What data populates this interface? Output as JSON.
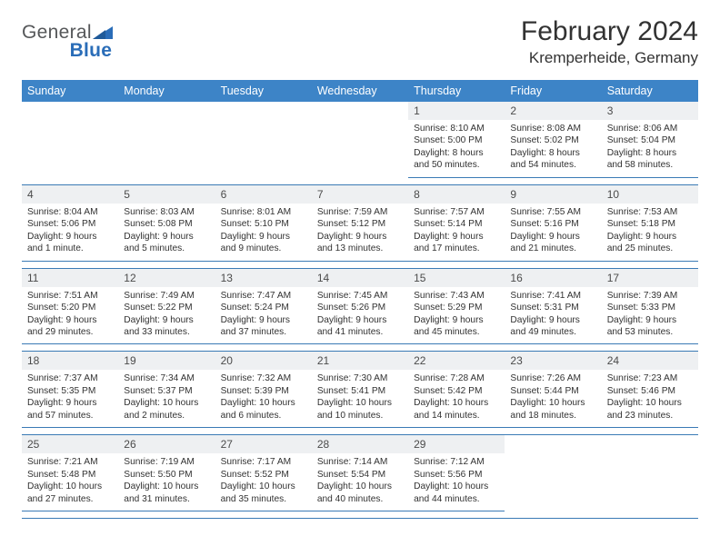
{
  "brand": {
    "name1": "General",
    "name2": "Blue"
  },
  "title": "February 2024",
  "location": "Kremperheide, Germany",
  "dayHeaders": [
    "Sunday",
    "Monday",
    "Tuesday",
    "Wednesday",
    "Thursday",
    "Friday",
    "Saturday"
  ],
  "colors": {
    "header_bg": "#3d84c7",
    "header_fg": "#ffffff",
    "daynum_bg": "#eef0f2",
    "text": "#323232",
    "row_border": "#3a7ab5",
    "logo_gray": "#555759",
    "logo_blue": "#2a6db8"
  },
  "weeks": [
    [
      {
        "n": "",
        "sr": "",
        "ss": "",
        "dl": ""
      },
      {
        "n": "",
        "sr": "",
        "ss": "",
        "dl": ""
      },
      {
        "n": "",
        "sr": "",
        "ss": "",
        "dl": ""
      },
      {
        "n": "",
        "sr": "",
        "ss": "",
        "dl": ""
      },
      {
        "n": "1",
        "sr": "Sunrise: 8:10 AM",
        "ss": "Sunset: 5:00 PM",
        "dl": "Daylight: 8 hours and 50 minutes."
      },
      {
        "n": "2",
        "sr": "Sunrise: 8:08 AM",
        "ss": "Sunset: 5:02 PM",
        "dl": "Daylight: 8 hours and 54 minutes."
      },
      {
        "n": "3",
        "sr": "Sunrise: 8:06 AM",
        "ss": "Sunset: 5:04 PM",
        "dl": "Daylight: 8 hours and 58 minutes."
      }
    ],
    [
      {
        "n": "4",
        "sr": "Sunrise: 8:04 AM",
        "ss": "Sunset: 5:06 PM",
        "dl": "Daylight: 9 hours and 1 minute."
      },
      {
        "n": "5",
        "sr": "Sunrise: 8:03 AM",
        "ss": "Sunset: 5:08 PM",
        "dl": "Daylight: 9 hours and 5 minutes."
      },
      {
        "n": "6",
        "sr": "Sunrise: 8:01 AM",
        "ss": "Sunset: 5:10 PM",
        "dl": "Daylight: 9 hours and 9 minutes."
      },
      {
        "n": "7",
        "sr": "Sunrise: 7:59 AM",
        "ss": "Sunset: 5:12 PM",
        "dl": "Daylight: 9 hours and 13 minutes."
      },
      {
        "n": "8",
        "sr": "Sunrise: 7:57 AM",
        "ss": "Sunset: 5:14 PM",
        "dl": "Daylight: 9 hours and 17 minutes."
      },
      {
        "n": "9",
        "sr": "Sunrise: 7:55 AM",
        "ss": "Sunset: 5:16 PM",
        "dl": "Daylight: 9 hours and 21 minutes."
      },
      {
        "n": "10",
        "sr": "Sunrise: 7:53 AM",
        "ss": "Sunset: 5:18 PM",
        "dl": "Daylight: 9 hours and 25 minutes."
      }
    ],
    [
      {
        "n": "11",
        "sr": "Sunrise: 7:51 AM",
        "ss": "Sunset: 5:20 PM",
        "dl": "Daylight: 9 hours and 29 minutes."
      },
      {
        "n": "12",
        "sr": "Sunrise: 7:49 AM",
        "ss": "Sunset: 5:22 PM",
        "dl": "Daylight: 9 hours and 33 minutes."
      },
      {
        "n": "13",
        "sr": "Sunrise: 7:47 AM",
        "ss": "Sunset: 5:24 PM",
        "dl": "Daylight: 9 hours and 37 minutes."
      },
      {
        "n": "14",
        "sr": "Sunrise: 7:45 AM",
        "ss": "Sunset: 5:26 PM",
        "dl": "Daylight: 9 hours and 41 minutes."
      },
      {
        "n": "15",
        "sr": "Sunrise: 7:43 AM",
        "ss": "Sunset: 5:29 PM",
        "dl": "Daylight: 9 hours and 45 minutes."
      },
      {
        "n": "16",
        "sr": "Sunrise: 7:41 AM",
        "ss": "Sunset: 5:31 PM",
        "dl": "Daylight: 9 hours and 49 minutes."
      },
      {
        "n": "17",
        "sr": "Sunrise: 7:39 AM",
        "ss": "Sunset: 5:33 PM",
        "dl": "Daylight: 9 hours and 53 minutes."
      }
    ],
    [
      {
        "n": "18",
        "sr": "Sunrise: 7:37 AM",
        "ss": "Sunset: 5:35 PM",
        "dl": "Daylight: 9 hours and 57 minutes."
      },
      {
        "n": "19",
        "sr": "Sunrise: 7:34 AM",
        "ss": "Sunset: 5:37 PM",
        "dl": "Daylight: 10 hours and 2 minutes."
      },
      {
        "n": "20",
        "sr": "Sunrise: 7:32 AM",
        "ss": "Sunset: 5:39 PM",
        "dl": "Daylight: 10 hours and 6 minutes."
      },
      {
        "n": "21",
        "sr": "Sunrise: 7:30 AM",
        "ss": "Sunset: 5:41 PM",
        "dl": "Daylight: 10 hours and 10 minutes."
      },
      {
        "n": "22",
        "sr": "Sunrise: 7:28 AM",
        "ss": "Sunset: 5:42 PM",
        "dl": "Daylight: 10 hours and 14 minutes."
      },
      {
        "n": "23",
        "sr": "Sunrise: 7:26 AM",
        "ss": "Sunset: 5:44 PM",
        "dl": "Daylight: 10 hours and 18 minutes."
      },
      {
        "n": "24",
        "sr": "Sunrise: 7:23 AM",
        "ss": "Sunset: 5:46 PM",
        "dl": "Daylight: 10 hours and 23 minutes."
      }
    ],
    [
      {
        "n": "25",
        "sr": "Sunrise: 7:21 AM",
        "ss": "Sunset: 5:48 PM",
        "dl": "Daylight: 10 hours and 27 minutes."
      },
      {
        "n": "26",
        "sr": "Sunrise: 7:19 AM",
        "ss": "Sunset: 5:50 PM",
        "dl": "Daylight: 10 hours and 31 minutes."
      },
      {
        "n": "27",
        "sr": "Sunrise: 7:17 AM",
        "ss": "Sunset: 5:52 PM",
        "dl": "Daylight: 10 hours and 35 minutes."
      },
      {
        "n": "28",
        "sr": "Sunrise: 7:14 AM",
        "ss": "Sunset: 5:54 PM",
        "dl": "Daylight: 10 hours and 40 minutes."
      },
      {
        "n": "29",
        "sr": "Sunrise: 7:12 AM",
        "ss": "Sunset: 5:56 PM",
        "dl": "Daylight: 10 hours and 44 minutes."
      },
      {
        "n": "",
        "sr": "",
        "ss": "",
        "dl": ""
      },
      {
        "n": "",
        "sr": "",
        "ss": "",
        "dl": ""
      }
    ]
  ]
}
